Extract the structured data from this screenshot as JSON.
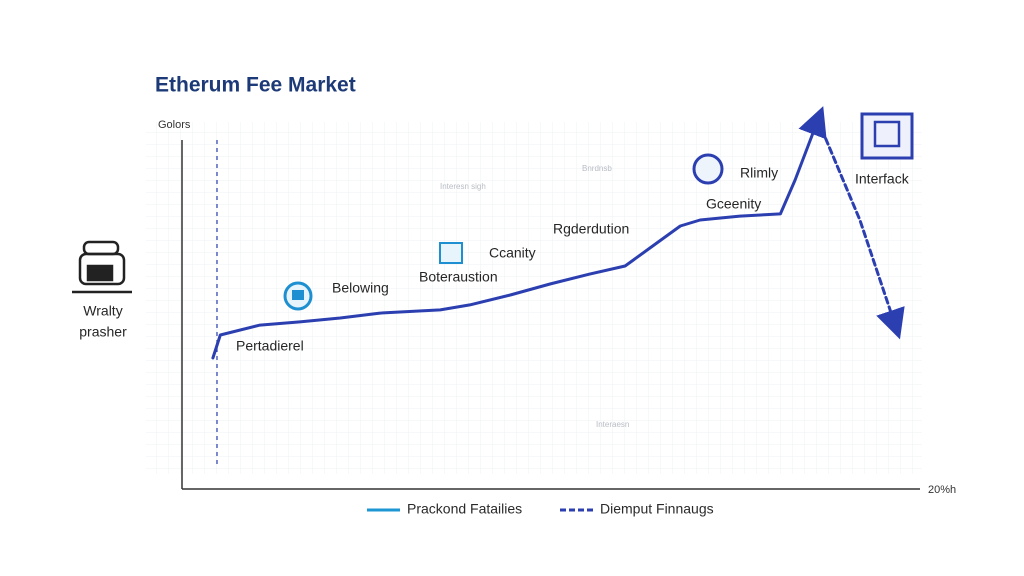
{
  "chart_data": {
    "type": "line",
    "title": "Etherum Fee Market",
    "y_label": "Golors",
    "x_label": "20%h",
    "x": [
      4.2,
      5.2,
      10.6,
      16.0,
      21.5,
      26.9,
      35.1,
      39.1,
      44.6,
      50.0,
      55.4,
      60.2,
      63.6,
      67.7,
      70.4,
      75.8,
      81.3,
      83.3,
      86.4,
      92.1,
      96.9
    ],
    "series": [
      {
        "name": "Prackond Fatailies",
        "color": "#2c3fb0",
        "style": "solid",
        "values": [
          37.0,
          43.5,
          46.3,
          47.2,
          48.3,
          49.7,
          50.6,
          52.0,
          54.8,
          57.9,
          60.7,
          63.0,
          68.1,
          74.3,
          76.0,
          77.1,
          77.7,
          87.3,
          104.2,
          null,
          null
        ]
      },
      {
        "name": "Diemput Finnaugs",
        "color": "#2c3fb0",
        "style": "dashed",
        "values": [
          null,
          null,
          null,
          null,
          null,
          null,
          null,
          null,
          null,
          null,
          null,
          null,
          null,
          null,
          null,
          null,
          null,
          null,
          104.2,
          76.0,
          46.3
        ]
      }
    ],
    "xlim": [
      0,
      100
    ],
    "ylim": [
      0,
      110
    ],
    "grid": true,
    "annotations": [
      "Pertadierel",
      "Belowing",
      "Boteraustion",
      "Ccanity",
      "Rgderdution",
      "Rlimly",
      "Gceenity",
      "Interfack",
      "Wralty",
      "prasher",
      "Interesn sigh",
      "Bnrdnsb",
      "Interaesn"
    ]
  }
}
